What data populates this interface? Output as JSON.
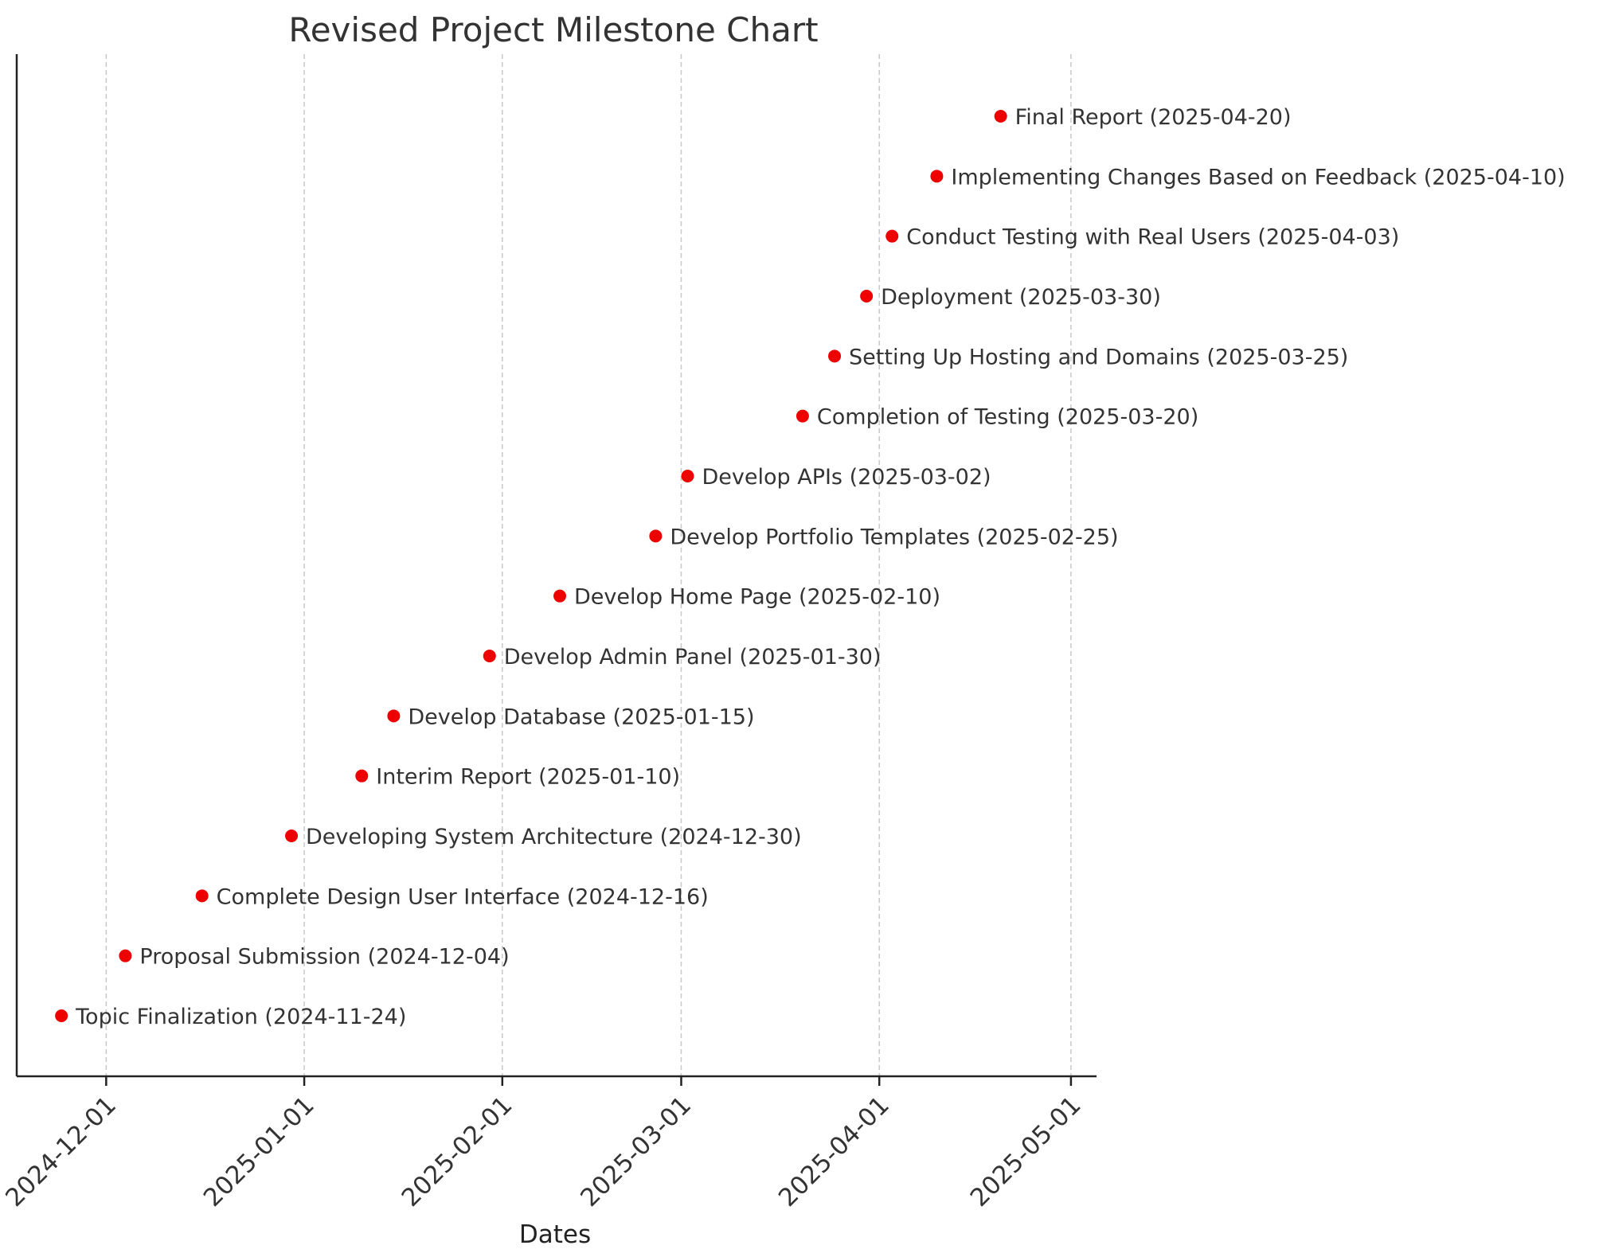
{
  "chart_data": {
    "type": "scatter",
    "title": "Revised Project Milestone Chart",
    "xlabel": "Dates",
    "ylabel": "",
    "x_type": "date",
    "xlim": [
      "2024-11-17",
      "2025-05-05"
    ],
    "x_ticks": [
      "2024-12-01",
      "2025-01-01",
      "2025-02-01",
      "2025-03-01",
      "2025-04-01",
      "2025-05-01"
    ],
    "grid": "vertical-dashed",
    "marker_color": "#ee0000",
    "milestones": [
      {
        "name": "Topic Finalization",
        "date": "2024-11-24",
        "label": "Topic Finalization (2024-11-24)"
      },
      {
        "name": "Proposal Submission",
        "date": "2024-12-04",
        "label": "Proposal Submission (2024-12-04)"
      },
      {
        "name": "Complete Design User Interface",
        "date": "2024-12-16",
        "label": "Complete Design User Interface (2024-12-16)"
      },
      {
        "name": "Developing System Architecture",
        "date": "2024-12-30",
        "label": "Developing System Architecture (2024-12-30)"
      },
      {
        "name": "Interim Report",
        "date": "2025-01-10",
        "label": "Interim Report (2025-01-10)"
      },
      {
        "name": "Develop Database",
        "date": "2025-01-15",
        "label": "Develop Database (2025-01-15)"
      },
      {
        "name": "Develop Admin Panel",
        "date": "2025-01-30",
        "label": "Develop Admin Panel (2025-01-30)"
      },
      {
        "name": "Develop Home Page",
        "date": "2025-02-10",
        "label": "Develop Home Page (2025-02-10)"
      },
      {
        "name": "Develop Portfolio Templates",
        "date": "2025-02-25",
        "label": "Develop Portfolio Templates (2025-02-25)"
      },
      {
        "name": "Develop APIs",
        "date": "2025-03-02",
        "label": "Develop APIs (2025-03-02)"
      },
      {
        "name": "Completion of Testing",
        "date": "2025-03-20",
        "label": "Completion of Testing (2025-03-20)"
      },
      {
        "name": "Setting Up Hosting and Domains",
        "date": "2025-03-25",
        "label": "Setting Up Hosting and Domains (2025-03-25)"
      },
      {
        "name": "Deployment",
        "date": "2025-03-30",
        "label": "Deployment (2025-03-30)"
      },
      {
        "name": "Conduct Testing with Real Users",
        "date": "2025-04-03",
        "label": "Conduct Testing with Real Users (2025-04-03)"
      },
      {
        "name": "Implementing Changes Based on Feedback",
        "date": "2025-04-10",
        "label": "Implementing Changes Based on Feedback (2025-04-10)"
      },
      {
        "name": "Final Report",
        "date": "2025-04-20",
        "label": "Final Report (2025-04-20)"
      }
    ]
  }
}
